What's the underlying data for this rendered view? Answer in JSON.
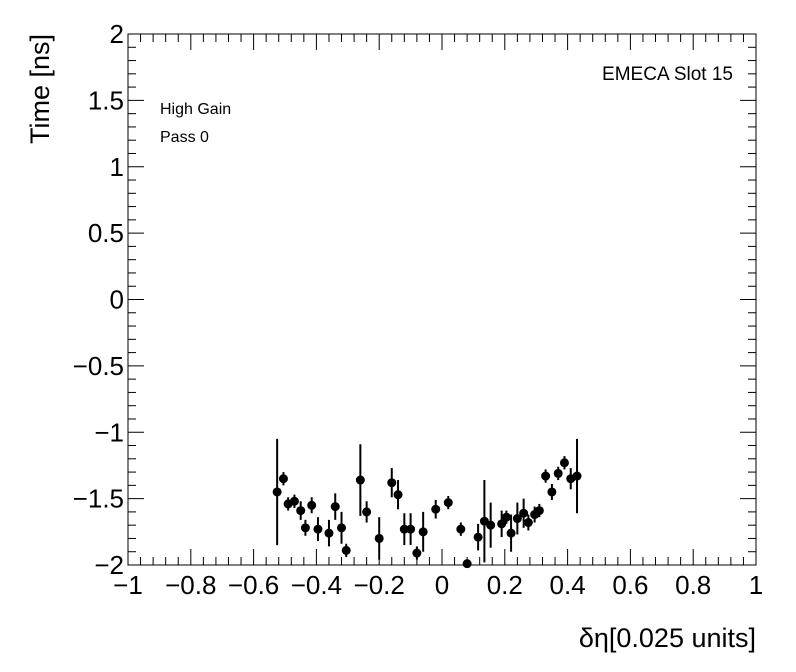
{
  "chart_data": {
    "type": "scatter",
    "title": "",
    "xlabel": "δη[0.025 units]",
    "ylabel": "Time [ns]",
    "xlim": [
      -1,
      1
    ],
    "ylim": [
      -2,
      2
    ],
    "x_ticks": [
      "−1",
      "−0.8",
      "−0.6",
      "−0.4",
      "−0.2",
      "0",
      "0.2",
      "0.4",
      "0.6",
      "0.8",
      "1"
    ],
    "y_ticks": [
      "−2",
      "−1.5",
      "−1",
      "−0.5",
      "0",
      "0.5",
      "1",
      "1.5",
      "2"
    ],
    "annotations": {
      "slot": "EMECA Slot 15",
      "gain": "High Gain",
      "pass": "Pass 0"
    },
    "grid": false,
    "points": [
      {
        "x": -0.525,
        "y": -1.45,
        "err": 0.4
      },
      {
        "x": -0.505,
        "y": -1.35,
        "err": 0.05
      },
      {
        "x": -0.49,
        "y": -1.54,
        "err": 0.05
      },
      {
        "x": -0.47,
        "y": -1.52,
        "err": 0.05
      },
      {
        "x": -0.45,
        "y": -1.59,
        "err": 0.07
      },
      {
        "x": -0.435,
        "y": -1.72,
        "err": 0.06
      },
      {
        "x": -0.415,
        "y": -1.55,
        "err": 0.06
      },
      {
        "x": -0.395,
        "y": -1.73,
        "err": 0.09
      },
      {
        "x": -0.36,
        "y": -1.76,
        "err": 0.1
      },
      {
        "x": -0.34,
        "y": -1.56,
        "err": 0.1
      },
      {
        "x": -0.32,
        "y": -1.72,
        "err": 0.12
      },
      {
        "x": -0.305,
        "y": -1.89,
        "err": 0.05
      },
      {
        "x": -0.26,
        "y": -1.36,
        "err": 0.27
      },
      {
        "x": -0.24,
        "y": -1.6,
        "err": 0.08
      },
      {
        "x": -0.2,
        "y": -1.8,
        "err": 0.16
      },
      {
        "x": -0.16,
        "y": -1.38,
        "err": 0.11
      },
      {
        "x": -0.14,
        "y": -1.47,
        "err": 0.11
      },
      {
        "x": -0.12,
        "y": -1.73,
        "err": 0.12
      },
      {
        "x": -0.1,
        "y": -1.73,
        "err": 0.12
      },
      {
        "x": -0.08,
        "y": -1.91,
        "err": 0.05
      },
      {
        "x": -0.06,
        "y": -1.75,
        "err": 0.15
      },
      {
        "x": -0.02,
        "y": -1.58,
        "err": 0.07
      },
      {
        "x": 0.02,
        "y": -1.53,
        "err": 0.05
      },
      {
        "x": 0.06,
        "y": -1.73,
        "err": 0.05
      },
      {
        "x": 0.08,
        "y": -1.99,
        "err": 0.03
      },
      {
        "x": 0.115,
        "y": -1.79,
        "err": 0.1
      },
      {
        "x": 0.135,
        "y": -1.67,
        "err": 0.31
      },
      {
        "x": 0.155,
        "y": -1.7,
        "err": 0.17
      },
      {
        "x": 0.19,
        "y": -1.69,
        "err": 0.1
      },
      {
        "x": 0.205,
        "y": -1.64,
        "err": 0.05
      },
      {
        "x": 0.22,
        "y": -1.76,
        "err": 0.14
      },
      {
        "x": 0.24,
        "y": -1.65,
        "err": 0.12
      },
      {
        "x": 0.26,
        "y": -1.61,
        "err": 0.11
      },
      {
        "x": 0.275,
        "y": -1.68,
        "err": 0.06
      },
      {
        "x": 0.295,
        "y": -1.62,
        "err": 0.06
      },
      {
        "x": 0.31,
        "y": -1.59,
        "err": 0.05
      },
      {
        "x": 0.33,
        "y": -1.33,
        "err": 0.05
      },
      {
        "x": 0.35,
        "y": -1.45,
        "err": 0.06
      },
      {
        "x": 0.37,
        "y": -1.31,
        "err": 0.05
      },
      {
        "x": 0.39,
        "y": -1.23,
        "err": 0.05
      },
      {
        "x": 0.41,
        "y": -1.35,
        "err": 0.08
      },
      {
        "x": 0.43,
        "y": -1.33,
        "err": 0.28
      }
    ]
  }
}
